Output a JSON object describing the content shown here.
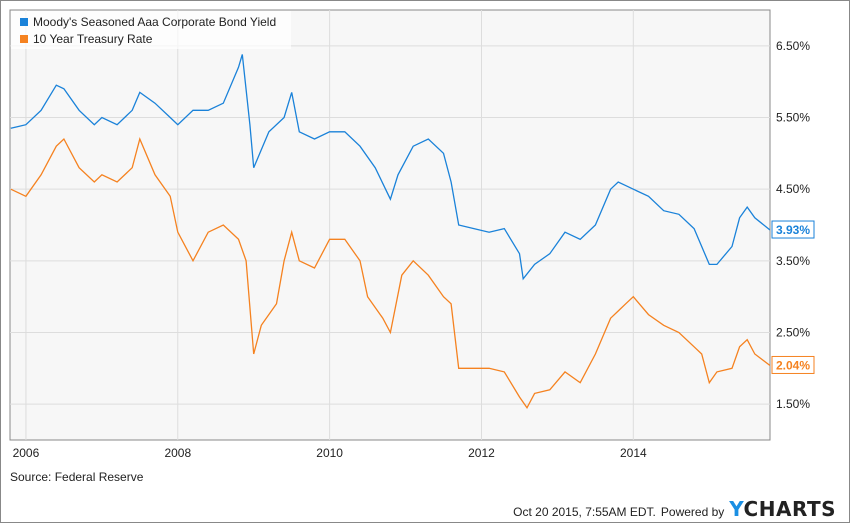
{
  "chart_data": {
    "type": "line",
    "title": "",
    "xlabel": "",
    "ylabel": "",
    "xlim": [
      2005.79,
      2015.8
    ],
    "ylim": [
      1.0,
      7.0
    ],
    "x_ticks": [
      2006,
      2008,
      2010,
      2012,
      2014
    ],
    "x_tick_labels": [
      "2006",
      "2008",
      "2010",
      "2012",
      "2014"
    ],
    "y_ticks": [
      1.5,
      2.5,
      3.5,
      4.5,
      5.5,
      6.5
    ],
    "y_tick_labels": [
      "1.50%",
      "2.50%",
      "3.50%",
      "4.50%",
      "5.50%",
      "6.50%"
    ],
    "grid": true,
    "legend_position": "top-left",
    "series": [
      {
        "name": "Moody's Seasoned Aaa Corporate Bond Yield",
        "color": "#1a82d9",
        "last_label": "3.93%",
        "points": [
          [
            2005.8,
            5.35
          ],
          [
            2006.0,
            5.4
          ],
          [
            2006.2,
            5.6
          ],
          [
            2006.4,
            5.95
          ],
          [
            2006.5,
            5.9
          ],
          [
            2006.7,
            5.6
          ],
          [
            2006.9,
            5.4
          ],
          [
            2007.0,
            5.5
          ],
          [
            2007.2,
            5.4
          ],
          [
            2007.4,
            5.6
          ],
          [
            2007.5,
            5.85
          ],
          [
            2007.7,
            5.7
          ],
          [
            2007.9,
            5.5
          ],
          [
            2008.0,
            5.4
          ],
          [
            2008.2,
            5.6
          ],
          [
            2008.4,
            5.6
          ],
          [
            2008.6,
            5.7
          ],
          [
            2008.8,
            6.2
          ],
          [
            2008.85,
            6.38
          ],
          [
            2008.95,
            5.4
          ],
          [
            2009.0,
            4.8
          ],
          [
            2009.2,
            5.3
          ],
          [
            2009.4,
            5.5
          ],
          [
            2009.5,
            5.85
          ],
          [
            2009.6,
            5.3
          ],
          [
            2009.8,
            5.2
          ],
          [
            2010.0,
            5.3
          ],
          [
            2010.2,
            5.3
          ],
          [
            2010.4,
            5.1
          ],
          [
            2010.6,
            4.8
          ],
          [
            2010.8,
            4.36
          ],
          [
            2010.9,
            4.7
          ],
          [
            2011.1,
            5.1
          ],
          [
            2011.3,
            5.2
          ],
          [
            2011.5,
            5.0
          ],
          [
            2011.6,
            4.6
          ],
          [
            2011.7,
            4.0
          ],
          [
            2011.9,
            3.95
          ],
          [
            2012.1,
            3.9
          ],
          [
            2012.3,
            3.95
          ],
          [
            2012.5,
            3.6
          ],
          [
            2012.55,
            3.25
          ],
          [
            2012.7,
            3.45
          ],
          [
            2012.9,
            3.6
          ],
          [
            2013.1,
            3.9
          ],
          [
            2013.3,
            3.8
          ],
          [
            2013.5,
            4.0
          ],
          [
            2013.7,
            4.5
          ],
          [
            2013.8,
            4.6
          ],
          [
            2013.9,
            4.55
          ],
          [
            2014.0,
            4.5
          ],
          [
            2014.2,
            4.4
          ],
          [
            2014.4,
            4.2
          ],
          [
            2014.6,
            4.15
          ],
          [
            2014.8,
            3.95
          ],
          [
            2014.9,
            3.7
          ],
          [
            2015.0,
            3.45
          ],
          [
            2015.1,
            3.45
          ],
          [
            2015.3,
            3.7
          ],
          [
            2015.4,
            4.1
          ],
          [
            2015.5,
            4.25
          ],
          [
            2015.6,
            4.1
          ],
          [
            2015.8,
            3.93
          ]
        ]
      },
      {
        "name": "10 Year Treasury Rate",
        "color": "#f58220",
        "last_label": "2.04%",
        "points": [
          [
            2005.8,
            4.5
          ],
          [
            2006.0,
            4.4
          ],
          [
            2006.2,
            4.7
          ],
          [
            2006.4,
            5.1
          ],
          [
            2006.5,
            5.2
          ],
          [
            2006.7,
            4.8
          ],
          [
            2006.9,
            4.6
          ],
          [
            2007.0,
            4.7
          ],
          [
            2007.2,
            4.6
          ],
          [
            2007.4,
            4.8
          ],
          [
            2007.5,
            5.2
          ],
          [
            2007.7,
            4.7
          ],
          [
            2007.9,
            4.4
          ],
          [
            2008.0,
            3.9
          ],
          [
            2008.2,
            3.5
          ],
          [
            2008.4,
            3.9
          ],
          [
            2008.6,
            4.0
          ],
          [
            2008.8,
            3.8
          ],
          [
            2008.9,
            3.5
          ],
          [
            2009.0,
            2.2
          ],
          [
            2009.1,
            2.6
          ],
          [
            2009.3,
            2.9
          ],
          [
            2009.4,
            3.5
          ],
          [
            2009.5,
            3.9
          ],
          [
            2009.6,
            3.5
          ],
          [
            2009.8,
            3.4
          ],
          [
            2010.0,
            3.8
          ],
          [
            2010.2,
            3.8
          ],
          [
            2010.4,
            3.5
          ],
          [
            2010.5,
            3.0
          ],
          [
            2010.7,
            2.7
          ],
          [
            2010.8,
            2.5
          ],
          [
            2010.95,
            3.3
          ],
          [
            2011.1,
            3.5
          ],
          [
            2011.3,
            3.3
          ],
          [
            2011.5,
            3.0
          ],
          [
            2011.6,
            2.9
          ],
          [
            2011.7,
            2.0
          ],
          [
            2011.9,
            2.0
          ],
          [
            2012.1,
            2.0
          ],
          [
            2012.3,
            1.95
          ],
          [
            2012.5,
            1.6
          ],
          [
            2012.6,
            1.45
          ],
          [
            2012.7,
            1.65
          ],
          [
            2012.9,
            1.7
          ],
          [
            2013.1,
            1.95
          ],
          [
            2013.3,
            1.8
          ],
          [
            2013.5,
            2.2
          ],
          [
            2013.7,
            2.7
          ],
          [
            2013.8,
            2.8
          ],
          [
            2013.9,
            2.9
          ],
          [
            2014.0,
            3.0
          ],
          [
            2014.2,
            2.75
          ],
          [
            2014.4,
            2.6
          ],
          [
            2014.6,
            2.5
          ],
          [
            2014.8,
            2.3
          ],
          [
            2014.9,
            2.2
          ],
          [
            2015.0,
            1.8
          ],
          [
            2015.1,
            1.95
          ],
          [
            2015.3,
            2.0
          ],
          [
            2015.4,
            2.3
          ],
          [
            2015.5,
            2.4
          ],
          [
            2015.6,
            2.2
          ],
          [
            2015.8,
            2.04
          ]
        ]
      }
    ]
  },
  "footer": {
    "source": "Source: Federal Reserve",
    "timestamp": "Oct 20 2015, 7:55AM EDT.",
    "powered_by": "Powered by",
    "logo_y": "Y",
    "logo_rest": "CHARTS"
  }
}
